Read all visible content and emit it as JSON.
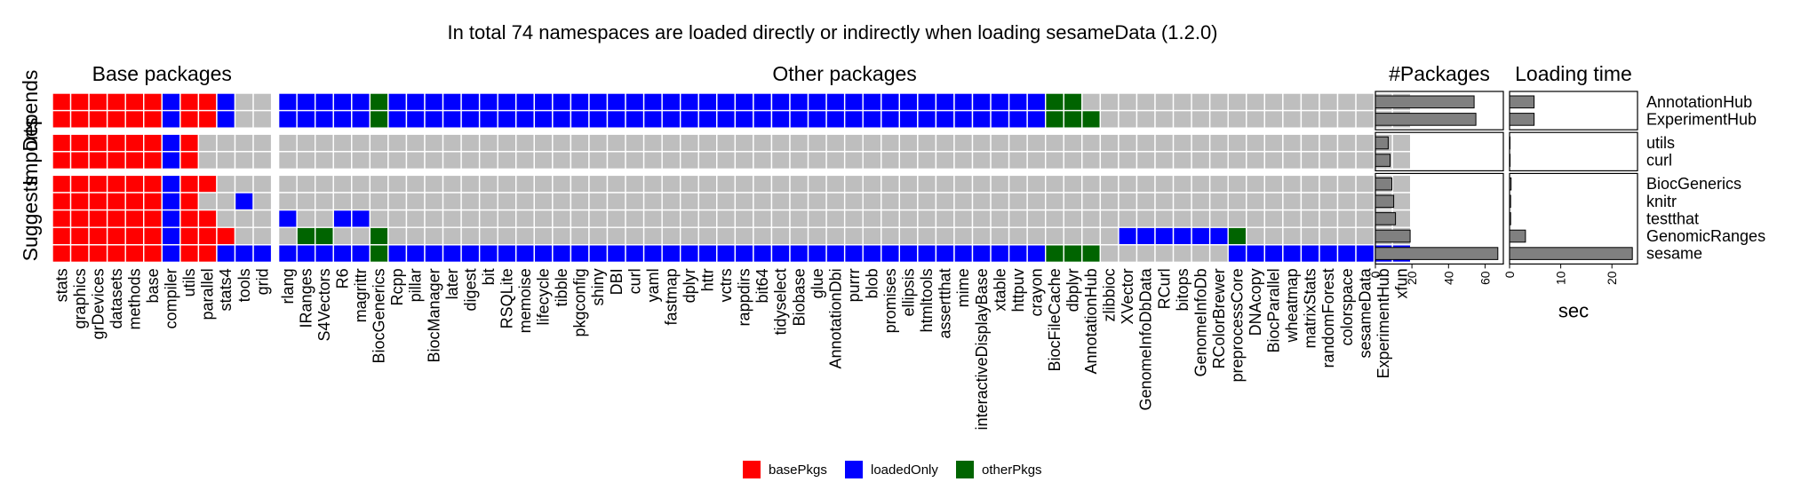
{
  "title": "In total 74 namespaces are loaded directly or indirectly when loading sesameData (1.2.0)",
  "colors": {
    "basePkgs": "#FF0000",
    "loadedOnly": "#0000FF",
    "otherPkgs": "#006400",
    "none": "#BEBEBE",
    "bar": "#808080"
  },
  "legend": {
    "items": [
      {
        "key": "basePkgs",
        "label": "basePkgs"
      },
      {
        "key": "loadedOnly",
        "label": "loadedOnly"
      },
      {
        "key": "otherPkgs",
        "label": "otherPkgs"
      }
    ]
  },
  "chart_data": {
    "type": "heatmap",
    "column_groups": [
      {
        "name": "Base packages",
        "columns": [
          "stats",
          "graphics",
          "grDevices",
          "datasets",
          "methods",
          "base",
          "compiler",
          "utils",
          "parallel",
          "stats4",
          "tools",
          "grid"
        ]
      },
      {
        "name": "Other packages",
        "columns": [
          "rlang",
          "IRanges",
          "S4Vectors",
          "R6",
          "magrittr",
          "BiocGenerics",
          "Rcpp",
          "pillar",
          "BiocManager",
          "later",
          "digest",
          "bit",
          "RSQLite",
          "memoise",
          "lifecycle",
          "tibble",
          "pkgconfig",
          "shiny",
          "DBI",
          "curl",
          "yaml",
          "fastmap",
          "dplyr",
          "httr",
          "vctrs",
          "rappdirs",
          "bit64",
          "tidyselect",
          "Biobase",
          "glue",
          "AnnotationDbi",
          "purrr",
          "blob",
          "promises",
          "ellipsis",
          "htmltools",
          "assertthat",
          "mime",
          "interactiveDisplayBase",
          "xtable",
          "httpuv",
          "crayon",
          "BiocFileCache",
          "dbplyr",
          "AnnotationHub",
          "zlibbioc",
          "XVector",
          "GenomeInfoDbData",
          "RCurl",
          "bitops",
          "GenomeInfoDb",
          "RColorBrewer",
          "preprocessCore",
          "DNAcopy",
          "BiocParallel",
          "wheatmap",
          "matrixStats",
          "randomForest",
          "colorspace",
          "sesameData",
          "ExperimentHub",
          "xfun"
        ]
      }
    ],
    "row_groups": [
      {
        "name": "Depends",
        "rows": [
          "AnnotationHub",
          "ExperimentHub"
        ]
      },
      {
        "name": "Imports",
        "rows": [
          "utils",
          "curl"
        ]
      },
      {
        "name": "Suggests",
        "rows": [
          "BiocGenerics",
          "knitr",
          "testthat",
          "GenomicRanges",
          "sesame"
        ]
      }
    ],
    "legend_codes": "B = basePkgs, L = loadedOnly, O = otherPkgs, . = not loaded",
    "cells": {
      "AnnotationHub": "BBBBBBLBBL..LLLLLOLLLLLLLLLLLLLLLLLLLLLLLLLLLLLLLLLLLLOO................................",
      "ExperimentHub": "BBBBBBLBBL..LLLLLOLLLLLLLLLLLLLLLLLLLLLLLLLLLLLLLLLLLLOOO...............................",
      "utils": "BBBBBBLB..........................................................................",
      "curl": "BBBBBBLB..........................................................................",
      "BiocGenerics": "BBBBBBLBB.........................................................................",
      "knitr": "BBBBBBLB..L......................................................................L",
      "testthat": "BBBBBBLBB...L..LL.................................................................",
      "GenomicRanges": "BBBBBBLBBB...OO..O........................................LLLLLLO...................",
      "sesame": "BBBBBBLBBLLLLLLLLOLLLLLLLLLLLLLLLLLLLLLLLLLLLLLLLLLLLLOOO.......LLLLLLLLLLOO."
    },
    "panels": [
      {
        "title": "#Packages",
        "type": "bar",
        "xlabel": "",
        "xlim": [
          0,
          70
        ],
        "ticks": [
          "0",
          "20",
          "40",
          "60"
        ],
        "values": {
          "AnnotationHub": 54,
          "ExperimentHub": 55,
          "utils": 7,
          "curl": 8,
          "BiocGenerics": 9,
          "knitr": 10,
          "testthat": 11,
          "GenomicRanges": 19,
          "sesame": 67
        }
      },
      {
        "title": "Loading time",
        "type": "bar",
        "xlabel": "sec",
        "xlim": [
          0,
          25
        ],
        "ticks": [
          "0",
          "10",
          "20"
        ],
        "values": {
          "AnnotationHub": 4.8,
          "ExperimentHub": 4.8,
          "utils": 0.05,
          "curl": 0.1,
          "BiocGenerics": 0.3,
          "knitr": 0.2,
          "testthat": 0.2,
          "GenomicRanges": 3.1,
          "sesame": 24.0
        }
      }
    ]
  }
}
